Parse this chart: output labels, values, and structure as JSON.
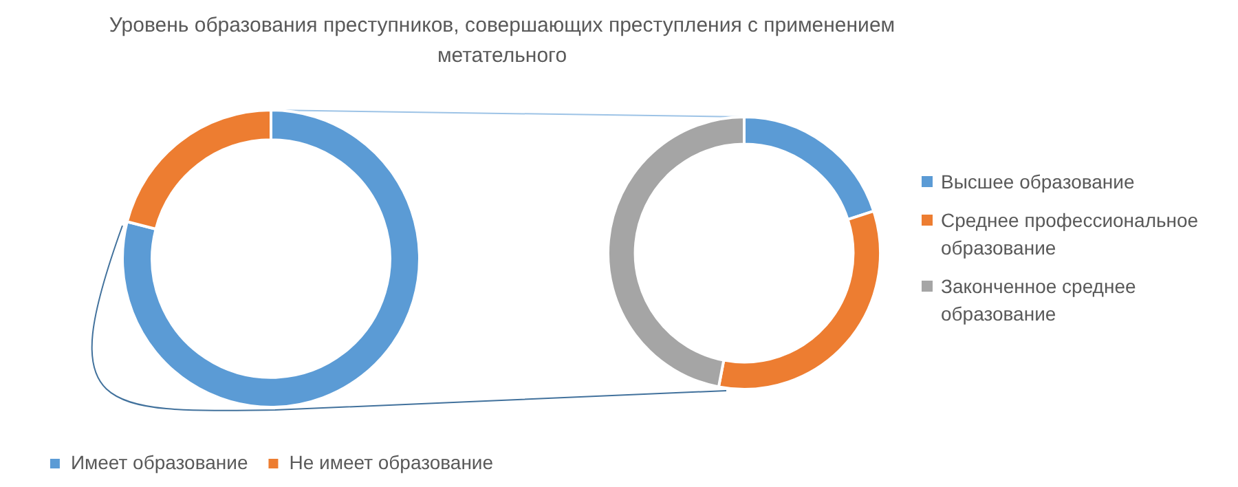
{
  "chart_data": [
    {
      "type": "donut",
      "title": "Уровень образования преступников, совершающих преступления с применением метательного",
      "categories": [
        "Имеет образование",
        "Не имеет образование"
      ],
      "values": [
        79,
        21
      ],
      "colors": [
        "#5b9bd5",
        "#ed7d31"
      ],
      "legend": "bottom"
    },
    {
      "type": "donut",
      "categories": [
        "Высшее образование",
        "Среднее профессиональное образование",
        "Законченное среднее образование"
      ],
      "values": [
        20,
        33,
        47
      ],
      "colors": [
        "#5b9bd5",
        "#ed7d31",
        "#a5a5a5"
      ],
      "legend": "right"
    }
  ]
}
